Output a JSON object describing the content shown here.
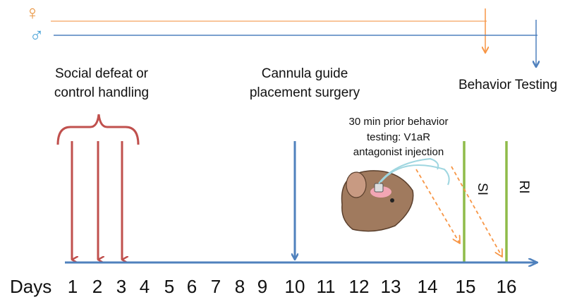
{
  "legend": {
    "female": "♀",
    "male": "♂"
  },
  "events": {
    "social_defeat": [
      "Social defeat or",
      "control handling"
    ],
    "surgery": [
      "Cannula guide",
      "placement surgery"
    ],
    "behavior": "Behavior Testing",
    "injection": [
      "30 min prior behavior",
      "testing: V1aR",
      "antagonist injection"
    ]
  },
  "tests": [
    "SI",
    "RI"
  ],
  "days": {
    "label": "Days",
    "numbers": [
      1,
      2,
      3,
      4,
      5,
      6,
      7,
      8,
      9,
      10,
      11,
      12,
      13,
      14,
      15,
      16
    ]
  }
}
